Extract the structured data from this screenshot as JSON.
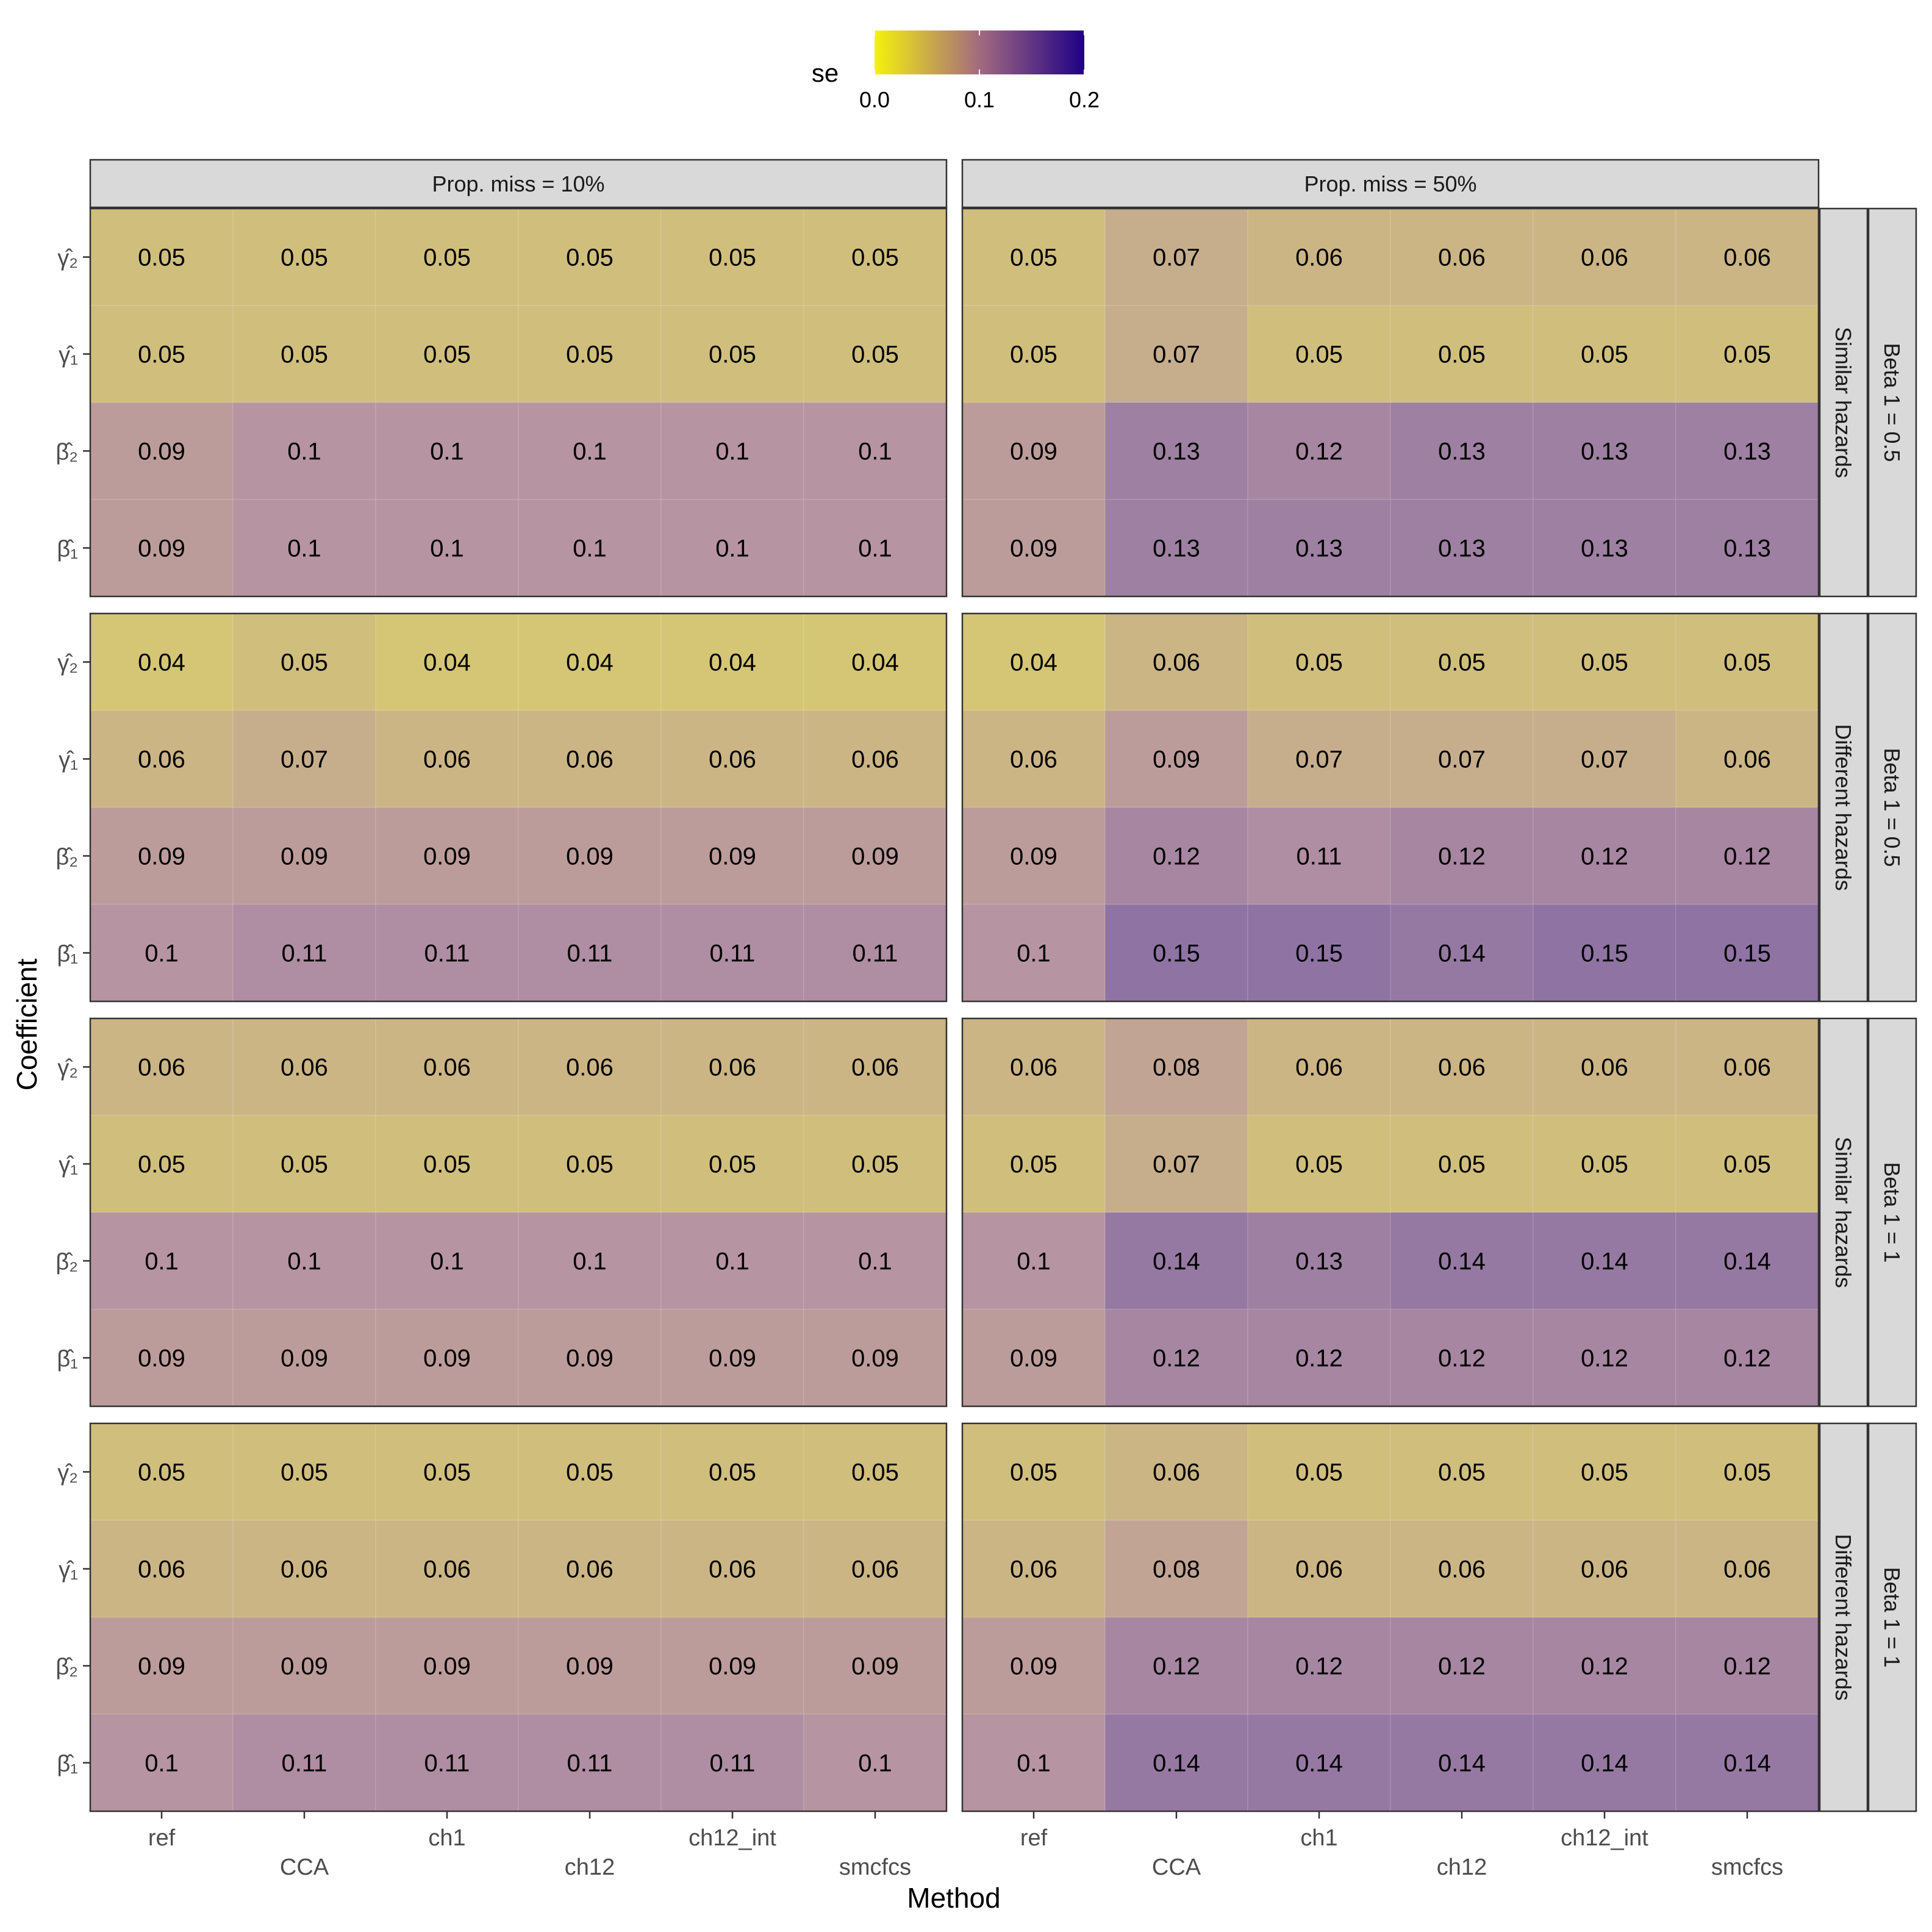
{
  "chart_data": {
    "type": "heatmap",
    "xlabel": "Method",
    "ylabel": "Coefficient",
    "methods": [
      "ref",
      "CCA",
      "ch1",
      "ch12",
      "ch12_int",
      "smcfcs"
    ],
    "coefficients": [
      "γ̂₂",
      "γ̂₁",
      "β̂₂",
      "β̂₁"
    ],
    "column_facets": [
      "Prop. miss = 10%",
      "Prop. miss = 50%"
    ],
    "row_facets": [
      {
        "inner": "Similar hazards",
        "outer": "Beta 1 = 0.5"
      },
      {
        "inner": "Different hazards",
        "outer": "Beta 1 = 0.5"
      },
      {
        "inner": "Similar hazards",
        "outer": "Beta 1 = 1"
      },
      {
        "inner": "Different hazards",
        "outer": "Beta 1 = 1"
      }
    ],
    "legend": {
      "title": "se",
      "range": [
        0,
        0.2
      ],
      "ticks": [
        "0.0",
        "0.1",
        "0.2"
      ],
      "colors": [
        "#f5f20c",
        "#a36a80",
        "#1f0086"
      ],
      "placement": "top"
    },
    "panels": [
      [
        {
          "values": [
            [
              0.05,
              0.05,
              0.05,
              0.05,
              0.05,
              0.05
            ],
            [
              0.05,
              0.05,
              0.05,
              0.05,
              0.05,
              0.05
            ],
            [
              0.09,
              0.1,
              0.1,
              0.1,
              0.1,
              0.1
            ],
            [
              0.09,
              0.1,
              0.1,
              0.1,
              0.1,
              0.1
            ]
          ],
          "labels": [
            [
              "0.05",
              "0.05",
              "0.05",
              "0.05",
              "0.05",
              "0.05"
            ],
            [
              "0.05",
              "0.05",
              "0.05",
              "0.05",
              "0.05",
              "0.05"
            ],
            [
              "0.09",
              "0.1",
              "0.1",
              "0.1",
              "0.1",
              "0.1"
            ],
            [
              "0.09",
              "0.1",
              "0.1",
              "0.1",
              "0.1",
              "0.1"
            ]
          ]
        },
        {
          "values": [
            [
              0.05,
              0.07,
              0.06,
              0.06,
              0.06,
              0.06
            ],
            [
              0.05,
              0.07,
              0.05,
              0.05,
              0.05,
              0.05
            ],
            [
              0.09,
              0.13,
              0.12,
              0.13,
              0.13,
              0.13
            ],
            [
              0.09,
              0.13,
              0.13,
              0.13,
              0.13,
              0.13
            ]
          ],
          "labels": [
            [
              "0.05",
              "0.07",
              "0.06",
              "0.06",
              "0.06",
              "0.06"
            ],
            [
              "0.05",
              "0.07",
              "0.05",
              "0.05",
              "0.05",
              "0.05"
            ],
            [
              "0.09",
              "0.13",
              "0.12",
              "0.13",
              "0.13",
              "0.13"
            ],
            [
              "0.09",
              "0.13",
              "0.13",
              "0.13",
              "0.13",
              "0.13"
            ]
          ]
        }
      ],
      [
        {
          "values": [
            [
              0.04,
              0.05,
              0.04,
              0.04,
              0.04,
              0.04
            ],
            [
              0.06,
              0.07,
              0.06,
              0.06,
              0.06,
              0.06
            ],
            [
              0.09,
              0.09,
              0.09,
              0.09,
              0.09,
              0.09
            ],
            [
              0.1,
              0.11,
              0.11,
              0.11,
              0.11,
              0.11
            ]
          ],
          "labels": [
            [
              "0.04",
              "0.05",
              "0.04",
              "0.04",
              "0.04",
              "0.04"
            ],
            [
              "0.06",
              "0.07",
              "0.06",
              "0.06",
              "0.06",
              "0.06"
            ],
            [
              "0.09",
              "0.09",
              "0.09",
              "0.09",
              "0.09",
              "0.09"
            ],
            [
              "0.1",
              "0.11",
              "0.11",
              "0.11",
              "0.11",
              "0.11"
            ]
          ]
        },
        {
          "values": [
            [
              0.04,
              0.06,
              0.05,
              0.05,
              0.05,
              0.05
            ],
            [
              0.06,
              0.09,
              0.07,
              0.07,
              0.07,
              0.06
            ],
            [
              0.09,
              0.12,
              0.11,
              0.12,
              0.12,
              0.12
            ],
            [
              0.1,
              0.15,
              0.15,
              0.14,
              0.15,
              0.15
            ]
          ],
          "labels": [
            [
              "0.04",
              "0.06",
              "0.05",
              "0.05",
              "0.05",
              "0.05"
            ],
            [
              "0.06",
              "0.09",
              "0.07",
              "0.07",
              "0.07",
              "0.06"
            ],
            [
              "0.09",
              "0.12",
              "0.11",
              "0.12",
              "0.12",
              "0.12"
            ],
            [
              "0.1",
              "0.15",
              "0.15",
              "0.14",
              "0.15",
              "0.15"
            ]
          ]
        }
      ],
      [
        {
          "values": [
            [
              0.06,
              0.06,
              0.06,
              0.06,
              0.06,
              0.06
            ],
            [
              0.05,
              0.05,
              0.05,
              0.05,
              0.05,
              0.05
            ],
            [
              0.1,
              0.1,
              0.1,
              0.1,
              0.1,
              0.1
            ],
            [
              0.09,
              0.09,
              0.09,
              0.09,
              0.09,
              0.09
            ]
          ],
          "labels": [
            [
              "0.06",
              "0.06",
              "0.06",
              "0.06",
              "0.06",
              "0.06"
            ],
            [
              "0.05",
              "0.05",
              "0.05",
              "0.05",
              "0.05",
              "0.05"
            ],
            [
              "0.1",
              "0.1",
              "0.1",
              "0.1",
              "0.1",
              "0.1"
            ],
            [
              "0.09",
              "0.09",
              "0.09",
              "0.09",
              "0.09",
              "0.09"
            ]
          ]
        },
        {
          "values": [
            [
              0.06,
              0.08,
              0.06,
              0.06,
              0.06,
              0.06
            ],
            [
              0.05,
              0.07,
              0.05,
              0.05,
              0.05,
              0.05
            ],
            [
              0.1,
              0.14,
              0.13,
              0.14,
              0.14,
              0.14
            ],
            [
              0.09,
              0.12,
              0.12,
              0.12,
              0.12,
              0.12
            ]
          ],
          "labels": [
            [
              "0.06",
              "0.08",
              "0.06",
              "0.06",
              "0.06",
              "0.06"
            ],
            [
              "0.05",
              "0.07",
              "0.05",
              "0.05",
              "0.05",
              "0.05"
            ],
            [
              "0.1",
              "0.14",
              "0.13",
              "0.14",
              "0.14",
              "0.14"
            ],
            [
              "0.09",
              "0.12",
              "0.12",
              "0.12",
              "0.12",
              "0.12"
            ]
          ]
        }
      ],
      [
        {
          "values": [
            [
              0.05,
              0.05,
              0.05,
              0.05,
              0.05,
              0.05
            ],
            [
              0.06,
              0.06,
              0.06,
              0.06,
              0.06,
              0.06
            ],
            [
              0.09,
              0.09,
              0.09,
              0.09,
              0.09,
              0.09
            ],
            [
              0.1,
              0.11,
              0.11,
              0.11,
              0.11,
              0.1
            ]
          ],
          "labels": [
            [
              "0.05",
              "0.05",
              "0.05",
              "0.05",
              "0.05",
              "0.05"
            ],
            [
              "0.06",
              "0.06",
              "0.06",
              "0.06",
              "0.06",
              "0.06"
            ],
            [
              "0.09",
              "0.09",
              "0.09",
              "0.09",
              "0.09",
              "0.09"
            ],
            [
              "0.1",
              "0.11",
              "0.11",
              "0.11",
              "0.11",
              "0.1"
            ]
          ]
        },
        {
          "values": [
            [
              0.05,
              0.06,
              0.05,
              0.05,
              0.05,
              0.05
            ],
            [
              0.06,
              0.08,
              0.06,
              0.06,
              0.06,
              0.06
            ],
            [
              0.09,
              0.12,
              0.12,
              0.12,
              0.12,
              0.12
            ],
            [
              0.1,
              0.14,
              0.14,
              0.14,
              0.14,
              0.14
            ]
          ],
          "labels": [
            [
              "0.05",
              "0.06",
              "0.05",
              "0.05",
              "0.05",
              "0.05"
            ],
            [
              "0.06",
              "0.08",
              "0.06",
              "0.06",
              "0.06",
              "0.06"
            ],
            [
              "0.09",
              "0.12",
              "0.12",
              "0.12",
              "0.12",
              "0.12"
            ],
            [
              "0.1",
              "0.14",
              "0.14",
              "0.14",
              "0.14",
              "0.14"
            ]
          ]
        }
      ]
    ]
  }
}
